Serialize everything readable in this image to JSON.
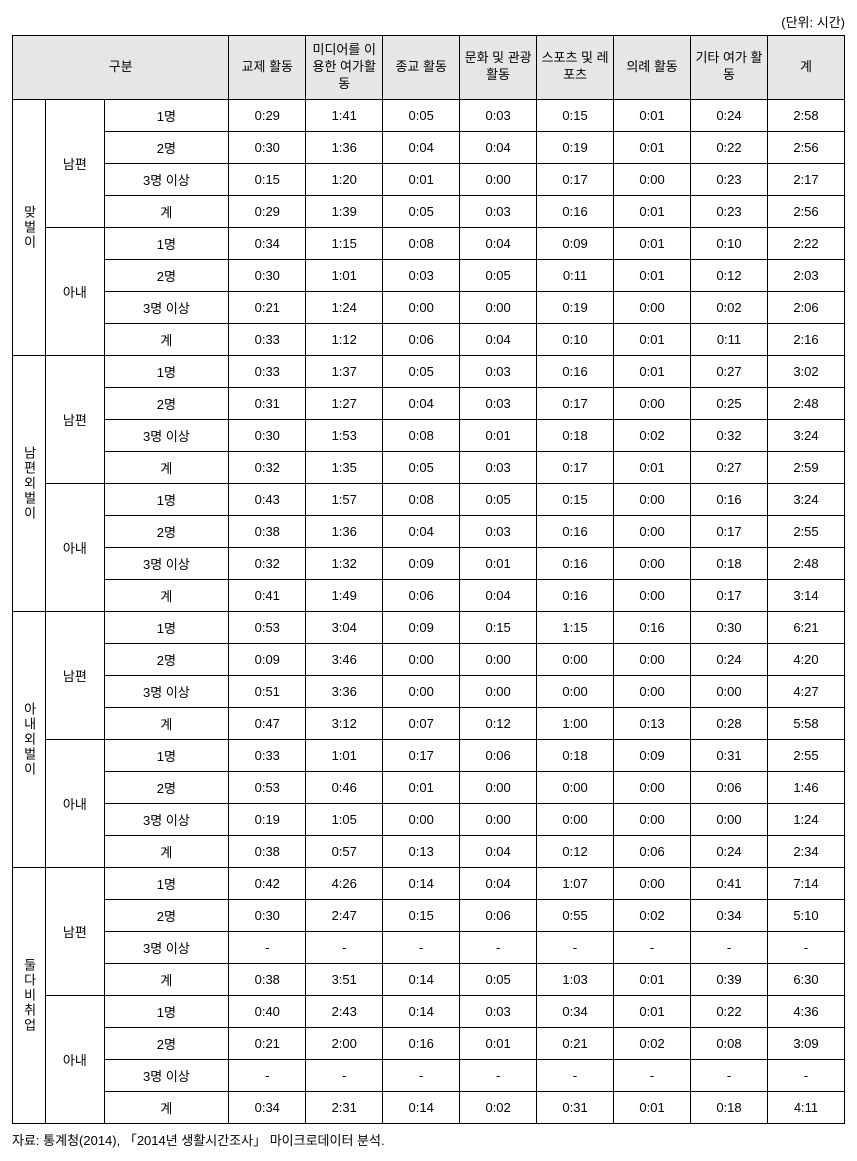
{
  "unit_label": "(단위: 시간)",
  "headers": {
    "group": "구분",
    "cols": [
      "교제\n활동",
      "미디어를\n이용한\n여가활동",
      "종교\n활동",
      "문화 및\n관광\n활동",
      "스포츠\n및\n레포츠",
      "의례\n활동",
      "기타\n여가\n활동",
      "계"
    ]
  },
  "counts": [
    "1명",
    "2명",
    "3명 이상",
    "계"
  ],
  "spouse_labels": {
    "husband": "남편",
    "wife": "아내"
  },
  "groups": [
    {
      "label": "맞벌이",
      "husband": [
        [
          "0:29",
          "1:41",
          "0:05",
          "0:03",
          "0:15",
          "0:01",
          "0:24",
          "2:58"
        ],
        [
          "0:30",
          "1:36",
          "0:04",
          "0:04",
          "0:19",
          "0:01",
          "0:22",
          "2:56"
        ],
        [
          "0:15",
          "1:20",
          "0:01",
          "0:00",
          "0:17",
          "0:00",
          "0:23",
          "2:17"
        ],
        [
          "0:29",
          "1:39",
          "0:05",
          "0:03",
          "0:16",
          "0:01",
          "0:23",
          "2:56"
        ]
      ],
      "wife": [
        [
          "0:34",
          "1:15",
          "0:08",
          "0:04",
          "0:09",
          "0:01",
          "0:10",
          "2:22"
        ],
        [
          "0:30",
          "1:01",
          "0:03",
          "0:05",
          "0:11",
          "0:01",
          "0:12",
          "2:03"
        ],
        [
          "0:21",
          "1:24",
          "0:00",
          "0:00",
          "0:19",
          "0:00",
          "0:02",
          "2:06"
        ],
        [
          "0:33",
          "1:12",
          "0:06",
          "0:04",
          "0:10",
          "0:01",
          "0:11",
          "2:16"
        ]
      ]
    },
    {
      "label": "남편외벌이",
      "husband": [
        [
          "0:33",
          "1:37",
          "0:05",
          "0:03",
          "0:16",
          "0:01",
          "0:27",
          "3:02"
        ],
        [
          "0:31",
          "1:27",
          "0:04",
          "0:03",
          "0:17",
          "0:00",
          "0:25",
          "2:48"
        ],
        [
          "0:30",
          "1:53",
          "0:08",
          "0:01",
          "0:18",
          "0:02",
          "0:32",
          "3:24"
        ],
        [
          "0:32",
          "1:35",
          "0:05",
          "0:03",
          "0:17",
          "0:01",
          "0:27",
          "2:59"
        ]
      ],
      "wife": [
        [
          "0:43",
          "1:57",
          "0:08",
          "0:05",
          "0:15",
          "0:00",
          "0:16",
          "3:24"
        ],
        [
          "0:38",
          "1:36",
          "0:04",
          "0:03",
          "0:16",
          "0:00",
          "0:17",
          "2:55"
        ],
        [
          "0:32",
          "1:32",
          "0:09",
          "0:01",
          "0:16",
          "0:00",
          "0:18",
          "2:48"
        ],
        [
          "0:41",
          "1:49",
          "0:06",
          "0:04",
          "0:16",
          "0:00",
          "0:17",
          "3:14"
        ]
      ]
    },
    {
      "label": "아내외벌이",
      "husband": [
        [
          "0:53",
          "3:04",
          "0:09",
          "0:15",
          "1:15",
          "0:16",
          "0:30",
          "6:21"
        ],
        [
          "0:09",
          "3:46",
          "0:00",
          "0:00",
          "0:00",
          "0:00",
          "0:24",
          "4:20"
        ],
        [
          "0:51",
          "3:36",
          "0:00",
          "0:00",
          "0:00",
          "0:00",
          "0:00",
          "4:27"
        ],
        [
          "0:47",
          "3:12",
          "0:07",
          "0:12",
          "1:00",
          "0:13",
          "0:28",
          "5:58"
        ]
      ],
      "wife": [
        [
          "0:33",
          "1:01",
          "0:17",
          "0:06",
          "0:18",
          "0:09",
          "0:31",
          "2:55"
        ],
        [
          "0:53",
          "0:46",
          "0:01",
          "0:00",
          "0:00",
          "0:00",
          "0:06",
          "1:46"
        ],
        [
          "0:19",
          "1:05",
          "0:00",
          "0:00",
          "0:00",
          "0:00",
          "0:00",
          "1:24"
        ],
        [
          "0:38",
          "0:57",
          "0:13",
          "0:04",
          "0:12",
          "0:06",
          "0:24",
          "2:34"
        ]
      ]
    },
    {
      "label": "둘다비취업",
      "husband": [
        [
          "0:42",
          "4:26",
          "0:14",
          "0:04",
          "1:07",
          "0:00",
          "0:41",
          "7:14"
        ],
        [
          "0:30",
          "2:47",
          "0:15",
          "0:06",
          "0:55",
          "0:02",
          "0:34",
          "5:10"
        ],
        [
          "-",
          "-",
          "-",
          "-",
          "-",
          "-",
          "-",
          "-"
        ],
        [
          "0:38",
          "3:51",
          "0:14",
          "0:05",
          "1:03",
          "0:01",
          "0:39",
          "6:30"
        ]
      ],
      "wife": [
        [
          "0:40",
          "2:43",
          "0:14",
          "0:03",
          "0:34",
          "0:01",
          "0:22",
          "4:36"
        ],
        [
          "0:21",
          "2:00",
          "0:16",
          "0:01",
          "0:21",
          "0:02",
          "0:08",
          "3:09"
        ],
        [
          "-",
          "-",
          "-",
          "-",
          "-",
          "-",
          "-",
          "-"
        ],
        [
          "0:34",
          "2:31",
          "0:14",
          "0:02",
          "0:31",
          "0:01",
          "0:18",
          "4:11"
        ]
      ]
    }
  ],
  "source": "자료: 통계청(2014), 「2014년 생활시간조사」 마이크로데이터 분석."
}
